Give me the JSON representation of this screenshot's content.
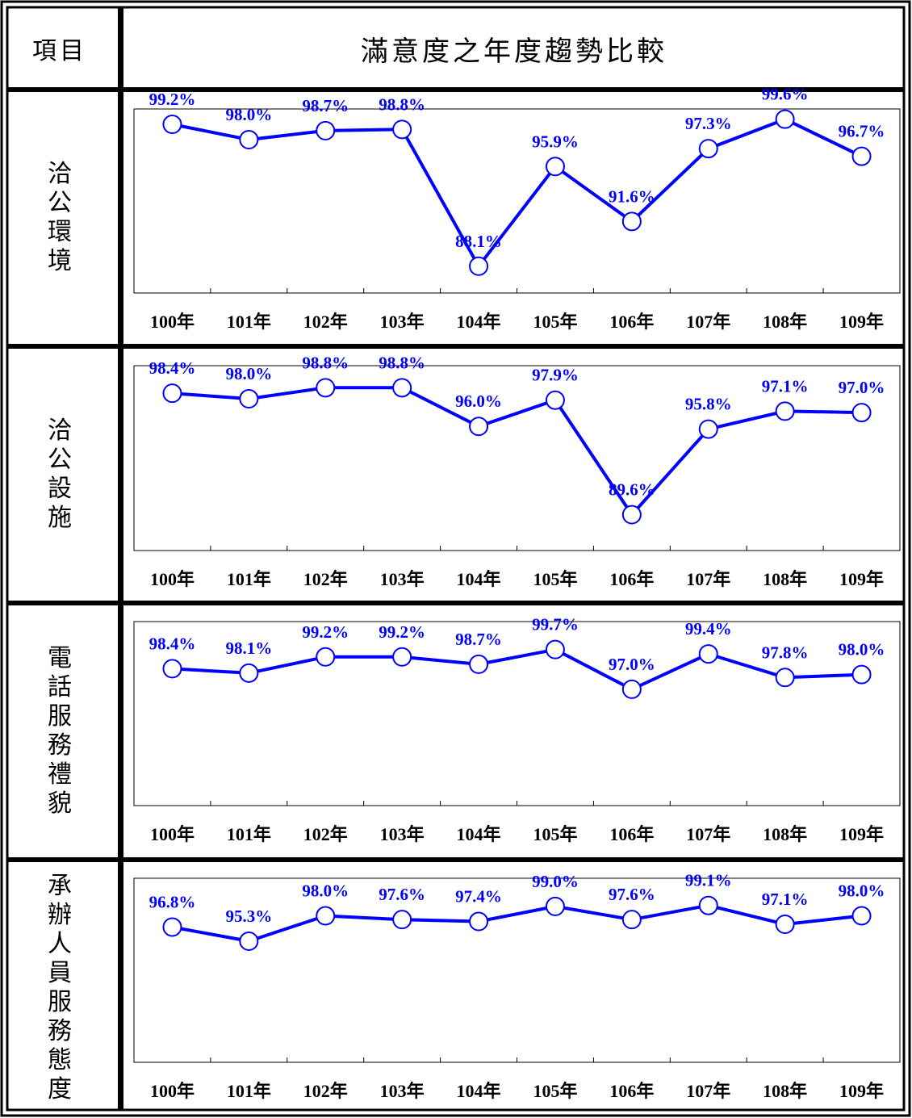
{
  "header": {
    "item_label": "項目",
    "title": "滿意度之年度趨勢比較"
  },
  "colors": {
    "line": "#0000ff",
    "marker_fill": "#ffffff",
    "border": "#000000"
  },
  "chart_data": [
    {
      "type": "line",
      "row_label": "洽公環境",
      "categories": [
        "100年",
        "101年",
        "102年",
        "103年",
        "104年",
        "105年",
        "106年",
        "107年",
        "108年",
        "109年"
      ],
      "values": [
        99.2,
        98.0,
        98.7,
        98.8,
        88.1,
        95.9,
        91.6,
        97.3,
        99.6,
        96.7
      ],
      "labels": [
        "99.2%",
        "98.0%",
        "98.7%",
        "98.8%",
        "88.1%",
        "95.9%",
        "91.6%",
        "97.3%",
        "99.6%",
        "96.7%"
      ],
      "ylim": [
        86.0,
        100.4
      ]
    },
    {
      "type": "line",
      "row_label": "洽公設施",
      "categories": [
        "100年",
        "101年",
        "102年",
        "103年",
        "104年",
        "105年",
        "106年",
        "107年",
        "108年",
        "109年"
      ],
      "values": [
        98.4,
        98.0,
        98.8,
        98.8,
        96.0,
        97.9,
        89.6,
        95.8,
        97.1,
        97.0
      ],
      "labels": [
        "98.4%",
        "98.0%",
        "98.8%",
        "98.8%",
        "96.0%",
        "97.9%",
        "89.6%",
        "95.8%",
        "97.1%",
        "97.0%"
      ],
      "ylim": [
        87.0,
        100.4
      ]
    },
    {
      "type": "line",
      "row_label": "電話服務禮貌",
      "categories": [
        "100年",
        "101年",
        "102年",
        "103年",
        "104年",
        "105年",
        "106年",
        "107年",
        "108年",
        "109年"
      ],
      "values": [
        98.4,
        98.1,
        99.2,
        99.2,
        98.7,
        99.7,
        97.0,
        99.4,
        97.8,
        98.0
      ],
      "labels": [
        "98.4%",
        "98.1%",
        "99.2%",
        "99.2%",
        "98.7%",
        "99.7%",
        "97.0%",
        "99.4%",
        "97.8%",
        "98.0%"
      ],
      "ylim": [
        89.1,
        101.6
      ]
    },
    {
      "type": "line",
      "row_label": "承辦人員服務態度",
      "categories": [
        "100年",
        "101年",
        "102年",
        "103年",
        "104年",
        "105年",
        "106年",
        "107年",
        "108年",
        "109年"
      ],
      "values": [
        96.8,
        95.3,
        98.0,
        97.6,
        97.4,
        99.0,
        97.6,
        99.1,
        97.1,
        98.0
      ],
      "labels": [
        "96.8%",
        "95.3%",
        "98.0%",
        "97.6%",
        "97.4%",
        "99.0%",
        "97.6%",
        "99.1%",
        "97.1%",
        "98.0%"
      ],
      "ylim": [
        82.4,
        102.0
      ]
    }
  ]
}
